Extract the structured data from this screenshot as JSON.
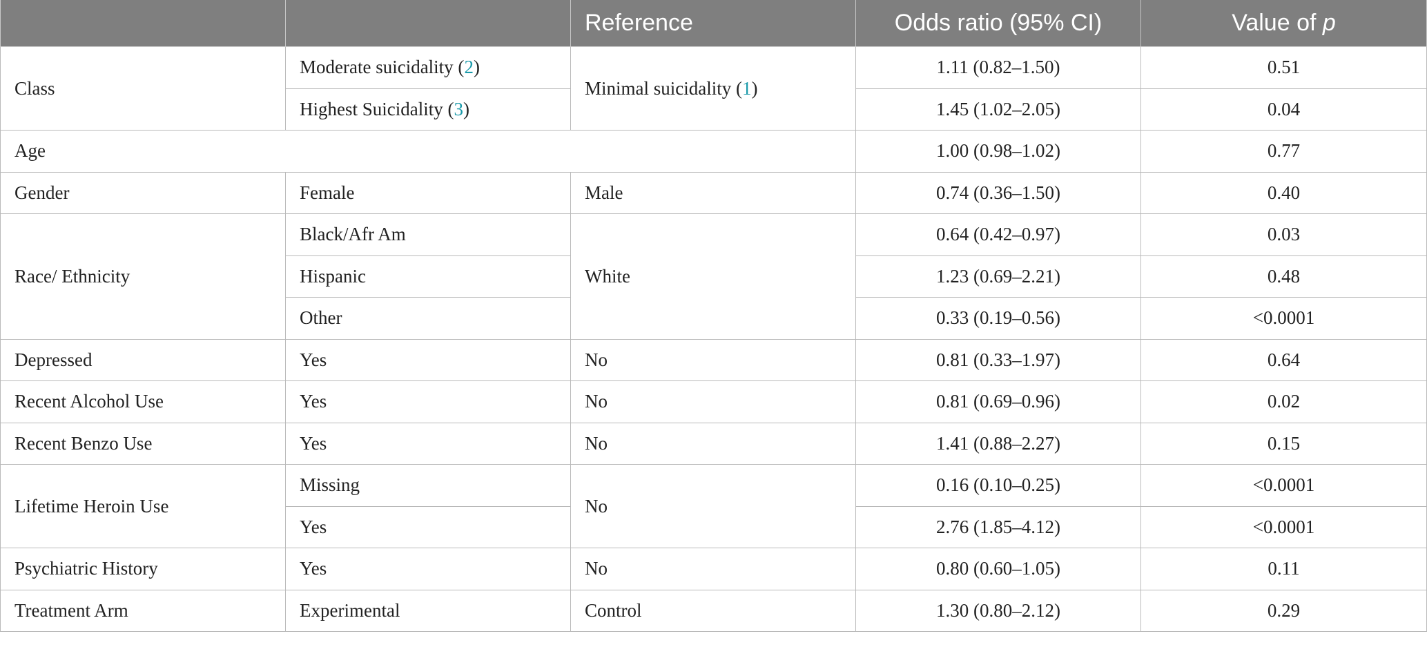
{
  "header": {
    "col1": "",
    "col2": "",
    "col3": "Reference",
    "col4": "Odds ratio (95% CI)",
    "col5_prefix": "Value of ",
    "col5_italic": "p"
  },
  "class_group": {
    "label": "Class",
    "reference": {
      "text_before": "Minimal suicidality (",
      "ref": "1",
      "text_after": ")"
    },
    "rows": [
      {
        "level_before": "Moderate suicidality (",
        "level_ref": "2",
        "level_after": ")",
        "or": "1.11 (0.82–1.50)",
        "p": "0.51"
      },
      {
        "level_before": "Highest Suicidality (",
        "level_ref": "3",
        "level_after": ")",
        "or": "1.45 (1.02–2.05)",
        "p": "0.04"
      }
    ]
  },
  "rows": {
    "age": {
      "label": "Age",
      "or": "1.00 (0.98–1.02)",
      "p": "0.77"
    },
    "gender": {
      "label": "Gender",
      "level": "Female",
      "reference": "Male",
      "or": "0.74 (0.36–1.50)",
      "p": "0.40"
    },
    "race": {
      "label": "Race/ Ethnicity",
      "reference": "White",
      "levels": [
        {
          "level": "Black/Afr Am",
          "or": "0.64 (0.42–0.97)",
          "p": "0.03"
        },
        {
          "level": "Hispanic",
          "or": "1.23 (0.69–2.21)",
          "p": "0.48"
        },
        {
          "level": "Other",
          "or": "0.33 (0.19–0.56)",
          "p": "<0.0001"
        }
      ]
    },
    "depressed": {
      "label": "Depressed",
      "level": "Yes",
      "reference": "No",
      "or": "0.81 (0.33–1.97)",
      "p": "0.64"
    },
    "alcohol": {
      "label": "Recent Alcohol Use",
      "level": "Yes",
      "reference": "No",
      "or": "0.81 (0.69–0.96)",
      "p": "0.02"
    },
    "benzo": {
      "label": "Recent Benzo Use",
      "level": "Yes",
      "reference": "No",
      "or": "1.41 (0.88–2.27)",
      "p": "0.15"
    },
    "heroin": {
      "label": "Lifetime Heroin Use",
      "reference": "No",
      "levels": [
        {
          "level": "Missing",
          "or": "0.16 (0.10–0.25)",
          "p": "<0.0001"
        },
        {
          "level": "Yes",
          "or": "2.76 (1.85–4.12)",
          "p": "<0.0001"
        }
      ]
    },
    "psych": {
      "label": "Psychiatric History",
      "level": "Yes",
      "reference": "No",
      "or": "0.80 (0.60–1.05)",
      "p": "0.11"
    },
    "treatment": {
      "label": "Treatment Arm",
      "level": "Experimental",
      "reference": "Control",
      "or": "1.30 (0.80–2.12)",
      "p": "0.29"
    }
  }
}
